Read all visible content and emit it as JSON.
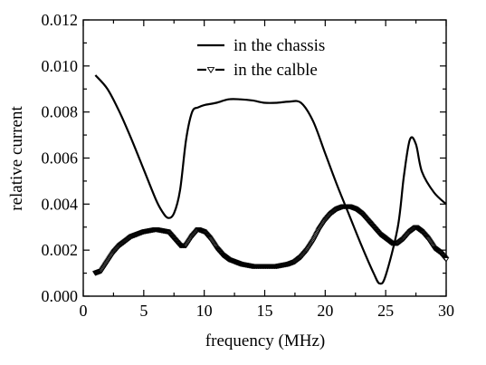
{
  "chart_data": {
    "type": "line",
    "title": "",
    "xlabel": "frequency (MHz)",
    "ylabel": "relative current",
    "xlim": [
      0,
      30
    ],
    "ylim": [
      0.0,
      0.012
    ],
    "xticks": [
      0,
      5,
      10,
      15,
      20,
      25,
      30
    ],
    "xtick_labels": [
      "0",
      "5",
      "10",
      "15",
      "20",
      "25",
      "30"
    ],
    "yticks": [
      0.0,
      0.002,
      0.004,
      0.006,
      0.008,
      0.01,
      0.012
    ],
    "ytick_labels": [
      "0.000",
      "0.002",
      "0.004",
      "0.006",
      "0.008",
      "0.010",
      "0.012"
    ],
    "grid": false,
    "legend": "top-center",
    "series": [
      {
        "name": "in the chassis",
        "marker": "none",
        "color": "#000000",
        "x": [
          1,
          2,
          3,
          4,
          5,
          6,
          6.5,
          7,
          7.5,
          8,
          8.5,
          9,
          9.5,
          10,
          11,
          12,
          13,
          14,
          15,
          16,
          17,
          18,
          19,
          20,
          21,
          22,
          23,
          24,
          24.5,
          25,
          26,
          26.5,
          27,
          27.5,
          28,
          29,
          30
        ],
        "y": [
          0.0096,
          0.009,
          0.008,
          0.0068,
          0.0055,
          0.0042,
          0.0037,
          0.0034,
          0.0036,
          0.0046,
          0.0068,
          0.008,
          0.0082,
          0.0083,
          0.0084,
          0.00855,
          0.00855,
          0.0085,
          0.0084,
          0.0084,
          0.00845,
          0.0084,
          0.0076,
          0.0062,
          0.0048,
          0.0035,
          0.0022,
          0.001,
          0.00055,
          0.0009,
          0.003,
          0.0052,
          0.0068,
          0.0066,
          0.0054,
          0.0045,
          0.004
        ]
      },
      {
        "name": "in the calble",
        "marker": "triangle-down",
        "color": "#000000",
        "x": [
          1,
          1.5,
          2,
          2.5,
          3,
          3.5,
          4,
          4.5,
          5,
          5.5,
          6,
          6.5,
          7,
          7.5,
          8,
          8.5,
          9,
          9.5,
          10,
          10.5,
          11,
          11.5,
          12,
          12.5,
          13,
          13.5,
          14,
          14.5,
          15,
          15.5,
          16,
          16.5,
          17,
          17.5,
          18,
          18.5,
          19,
          19.5,
          20,
          20.5,
          21,
          21.5,
          22,
          22.5,
          23,
          23.5,
          24,
          24.5,
          25,
          25.5,
          26,
          26.5,
          27,
          27.5,
          28,
          28.5,
          29,
          29.5,
          30
        ],
        "y": [
          0.001,
          0.0011,
          0.0015,
          0.0019,
          0.0022,
          0.0024,
          0.0026,
          0.0027,
          0.0028,
          0.00285,
          0.0029,
          0.00285,
          0.0028,
          0.0025,
          0.0022,
          0.0022,
          0.0026,
          0.0029,
          0.0028,
          0.0025,
          0.0021,
          0.0018,
          0.0016,
          0.0015,
          0.0014,
          0.00135,
          0.0013,
          0.0013,
          0.0013,
          0.0013,
          0.0013,
          0.00135,
          0.0014,
          0.0015,
          0.0017,
          0.002,
          0.0024,
          0.0029,
          0.0033,
          0.0036,
          0.0038,
          0.0039,
          0.0039,
          0.0038,
          0.0036,
          0.0033,
          0.003,
          0.0027,
          0.0025,
          0.0023,
          0.0023,
          0.0025,
          0.0028,
          0.003,
          0.0028,
          0.0025,
          0.0021,
          0.0019,
          0.0016
        ]
      }
    ]
  }
}
